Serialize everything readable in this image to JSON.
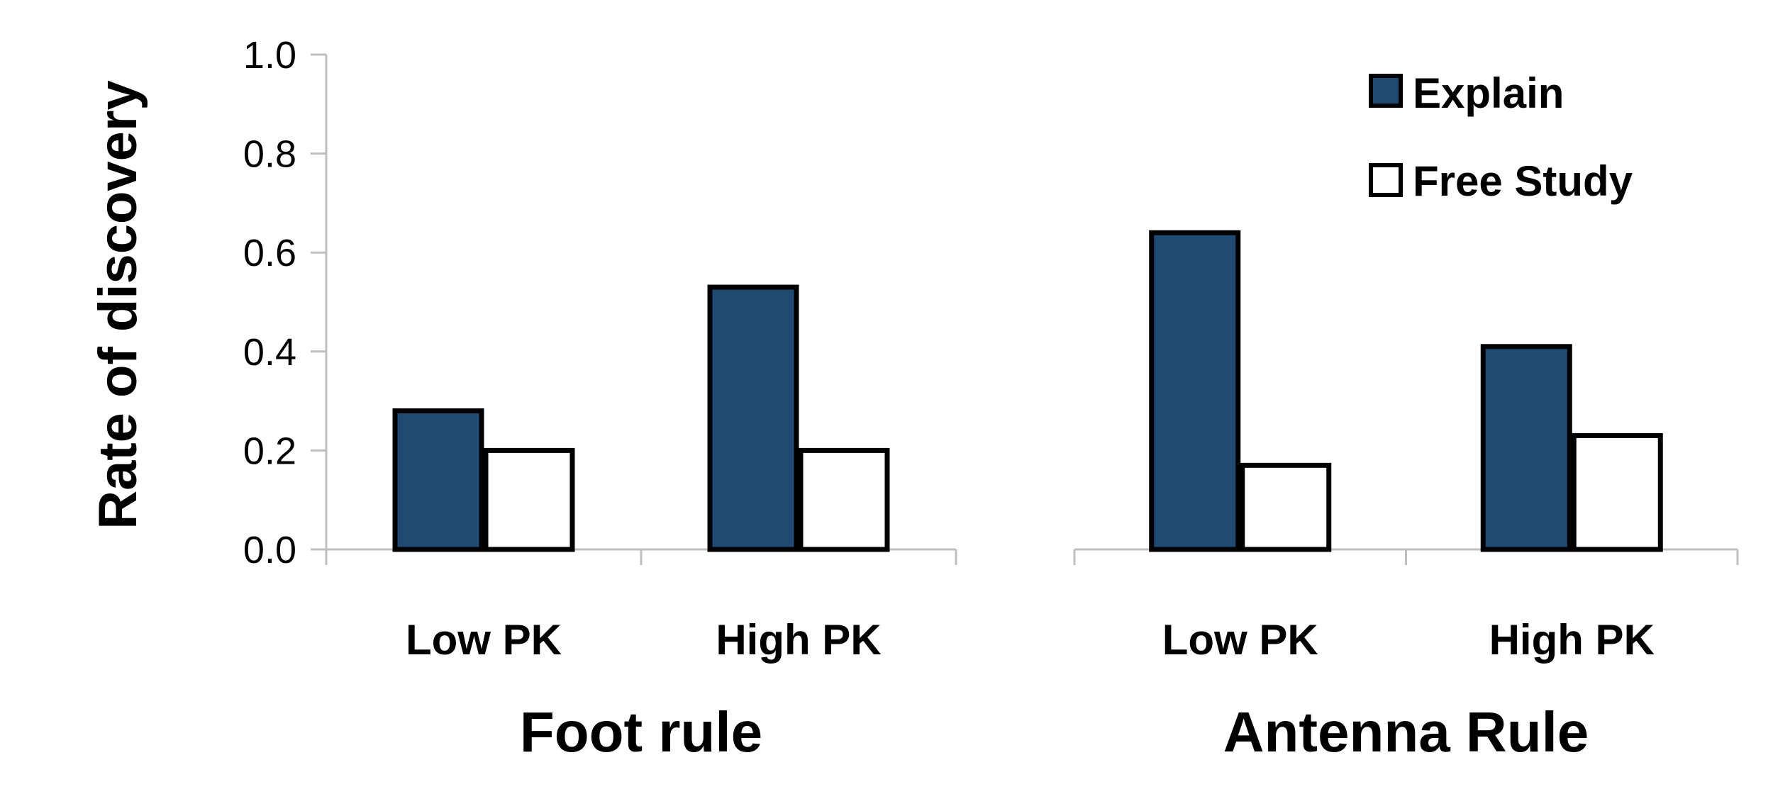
{
  "chart_data": {
    "type": "bar",
    "ylabel": "Rate of discovery",
    "ylim": [
      0,
      1.0
    ],
    "y_ticks": [
      "0.0",
      "0.2",
      "0.4",
      "0.6",
      "0.8",
      "1.0"
    ],
    "y_tick_values": [
      0,
      0.2,
      0.4,
      0.6,
      0.8,
      1.0
    ],
    "grid": false,
    "legend_position": "top-right",
    "series_names": [
      "Explain",
      "Free Study"
    ],
    "series_colors": [
      "#1f4a72",
      "#ffffff"
    ],
    "groups": [
      {
        "label": "Foot rule",
        "categories": [
          "Low PK",
          "High PK"
        ],
        "series": [
          {
            "name": "Explain",
            "values": [
              0.28,
              0.53
            ]
          },
          {
            "name": "Free Study",
            "values": [
              0.2,
              0.2
            ]
          }
        ]
      },
      {
        "label": "Antenna Rule",
        "categories": [
          "Low PK",
          "High PK"
        ],
        "series": [
          {
            "name": "Explain",
            "values": [
              0.64,
              0.41
            ]
          },
          {
            "name": "Free Study",
            "values": [
              0.17,
              0.23
            ]
          }
        ]
      }
    ]
  }
}
